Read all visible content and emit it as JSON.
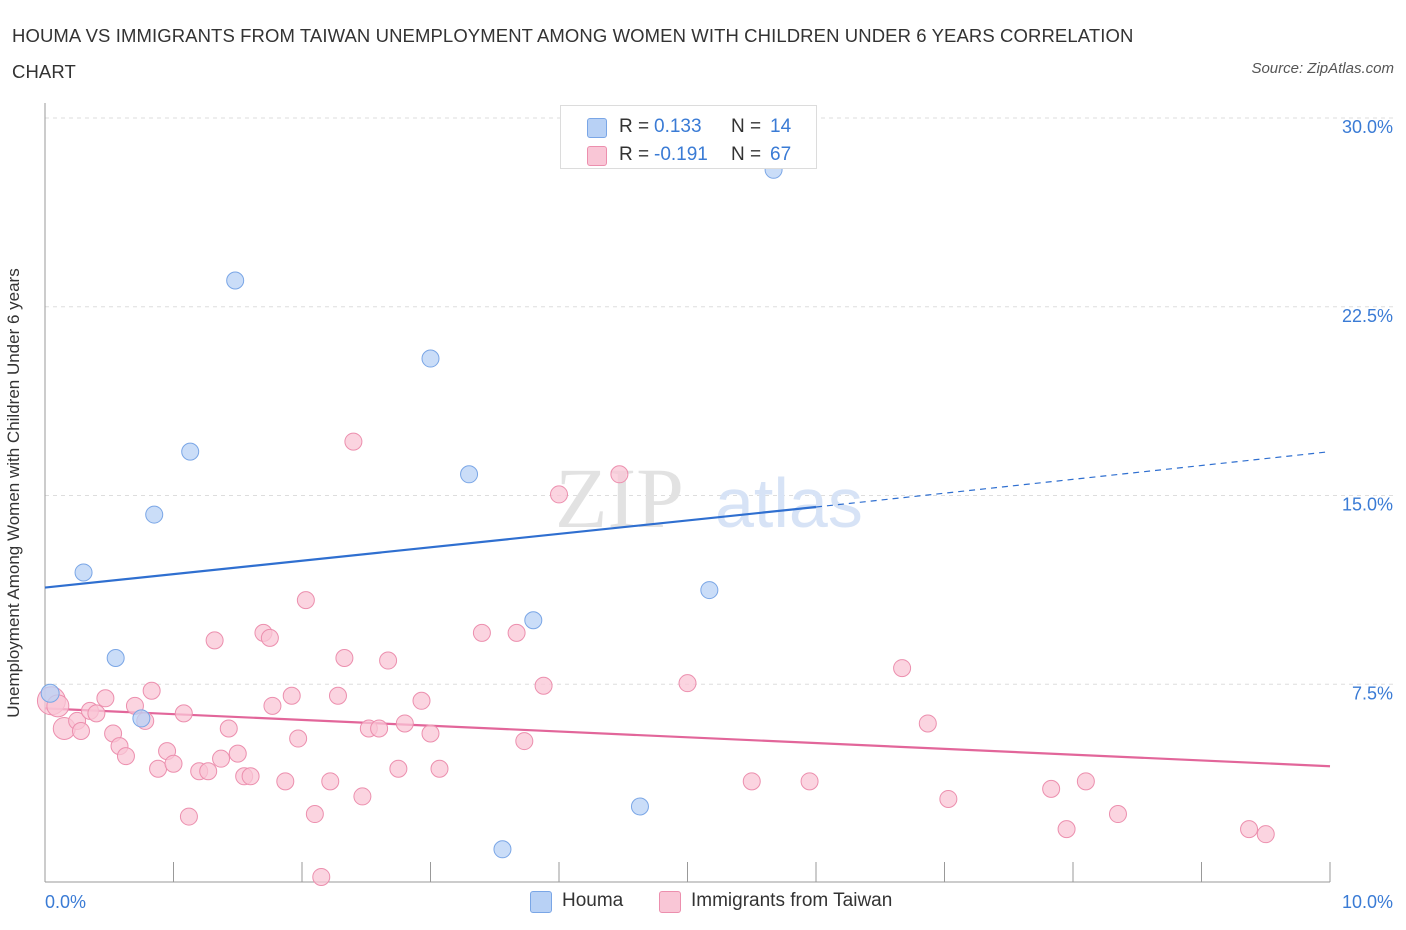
{
  "title": "HOUMA VS IMMIGRANTS FROM TAIWAN UNEMPLOYMENT AMONG WOMEN WITH CHILDREN UNDER 6 YEARS CORRELATION CHART",
  "source": "Source: ZipAtlas.com",
  "watermark": {
    "part1": "ZIP",
    "part2": "atlas"
  },
  "legend_top": {
    "rows": [
      {
        "r_label": "R =",
        "r_value": "0.133",
        "n_label": "N =",
        "n_value": "14",
        "color": "#b8d1f5",
        "border": "#7aa6e6"
      },
      {
        "r_label": "R =",
        "r_value": "-0.191",
        "n_label": "N =",
        "n_value": "67",
        "color": "#f9c6d6",
        "border": "#ec8fae"
      }
    ]
  },
  "legend_bottom": [
    {
      "label": "Houma",
      "color": "#b8d1f5",
      "border": "#7aa6e6"
    },
    {
      "label": "Immigrants from Taiwan",
      "color": "#f9c6d6",
      "border": "#ec8fae"
    }
  ],
  "colors": {
    "blue_line": "#2f6fd0",
    "pink_line": "#e2669a",
    "axis_text": "#3a7bd5",
    "grid": "#dddddd"
  },
  "chart_data": {
    "type": "scatter",
    "title": "HOUMA VS IMMIGRANTS FROM TAIWAN UNEMPLOYMENT AMONG WOMEN WITH CHILDREN UNDER 6 YEARS CORRELATION CHART",
    "xlabel": "",
    "ylabel": "Unemployment Among Women with Children Under 6 years",
    "xlim": [
      0,
      10
    ],
    "ylim": [
      0,
      30
    ],
    "x_tick_labels": [
      {
        "value": 0,
        "label": "0.0%"
      },
      {
        "value": 10,
        "label": "10.0%"
      }
    ],
    "y_tick_labels": [
      {
        "value": 7.5,
        "label": "7.5%"
      },
      {
        "value": 15,
        "label": "15.0%"
      },
      {
        "value": 22.5,
        "label": "22.5%"
      },
      {
        "value": 30,
        "label": "30.0%"
      }
    ],
    "grid": "horizontal dashed",
    "legend_placement": "bottom",
    "series": [
      {
        "name": "Houma",
        "color": "#b8d1f5",
        "r": 0.133,
        "n": 14,
        "points": [
          {
            "x": 0.04,
            "y": 7.5
          },
          {
            "x": 0.3,
            "y": 12.3
          },
          {
            "x": 0.55,
            "y": 8.9
          },
          {
            "x": 0.75,
            "y": 6.5
          },
          {
            "x": 0.85,
            "y": 14.6
          },
          {
            "x": 1.13,
            "y": 17.1
          },
          {
            "x": 1.48,
            "y": 23.9
          },
          {
            "x": 3.0,
            "y": 20.8
          },
          {
            "x": 3.3,
            "y": 16.2
          },
          {
            "x": 3.56,
            "y": 1.3
          },
          {
            "x": 3.8,
            "y": 10.4
          },
          {
            "x": 4.63,
            "y": 3.0
          },
          {
            "x": 5.17,
            "y": 11.6
          },
          {
            "x": 5.67,
            "y": 28.3
          }
        ],
        "trend": {
          "x0": 0,
          "y0": 11.7,
          "x1": 6.0,
          "y1": 14.9,
          "dashed_to_x": 10,
          "dashed_to_y": 17.1
        }
      },
      {
        "name": "Immigrants from Taiwan",
        "color": "#f9c6d6",
        "r": -0.191,
        "n": 67,
        "points": [
          {
            "x": 0.05,
            "y": 7.2
          },
          {
            "x": 0.1,
            "y": 7.0
          },
          {
            "x": 0.15,
            "y": 6.1
          },
          {
            "x": 0.25,
            "y": 6.4
          },
          {
            "x": 0.28,
            "y": 6.0
          },
          {
            "x": 0.35,
            "y": 6.8
          },
          {
            "x": 0.4,
            "y": 6.7
          },
          {
            "x": 0.47,
            "y": 7.3
          },
          {
            "x": 0.53,
            "y": 5.9
          },
          {
            "x": 0.58,
            "y": 5.4
          },
          {
            "x": 0.63,
            "y": 5.0
          },
          {
            "x": 0.7,
            "y": 7.0
          },
          {
            "x": 0.78,
            "y": 6.4
          },
          {
            "x": 0.83,
            "y": 7.6
          },
          {
            "x": 0.88,
            "y": 4.5
          },
          {
            "x": 0.95,
            "y": 5.2
          },
          {
            "x": 1.0,
            "y": 4.7
          },
          {
            "x": 1.08,
            "y": 6.7
          },
          {
            "x": 1.12,
            "y": 2.6
          },
          {
            "x": 1.2,
            "y": 4.4
          },
          {
            "x": 1.27,
            "y": 4.4
          },
          {
            "x": 1.32,
            "y": 9.6
          },
          {
            "x": 1.37,
            "y": 4.9
          },
          {
            "x": 1.43,
            "y": 6.1
          },
          {
            "x": 1.5,
            "y": 5.1
          },
          {
            "x": 1.55,
            "y": 4.2
          },
          {
            "x": 1.6,
            "y": 4.2
          },
          {
            "x": 1.7,
            "y": 9.9
          },
          {
            "x": 1.75,
            "y": 9.7
          },
          {
            "x": 1.77,
            "y": 7.0
          },
          {
            "x": 1.87,
            "y": 4.0
          },
          {
            "x": 1.92,
            "y": 7.4
          },
          {
            "x": 1.97,
            "y": 5.7
          },
          {
            "x": 2.03,
            "y": 11.2
          },
          {
            "x": 2.1,
            "y": 2.7
          },
          {
            "x": 2.15,
            "y": 0.2
          },
          {
            "x": 2.22,
            "y": 4.0
          },
          {
            "x": 2.28,
            "y": 7.4
          },
          {
            "x": 2.33,
            "y": 8.9
          },
          {
            "x": 2.4,
            "y": 17.5
          },
          {
            "x": 2.47,
            "y": 3.4
          },
          {
            "x": 2.52,
            "y": 6.1
          },
          {
            "x": 2.6,
            "y": 6.1
          },
          {
            "x": 2.67,
            "y": 8.8
          },
          {
            "x": 2.75,
            "y": 4.5
          },
          {
            "x": 2.8,
            "y": 6.3
          },
          {
            "x": 2.93,
            "y": 7.2
          },
          {
            "x": 3.0,
            "y": 5.9
          },
          {
            "x": 3.07,
            "y": 4.5
          },
          {
            "x": 3.4,
            "y": 9.9
          },
          {
            "x": 3.67,
            "y": 9.9
          },
          {
            "x": 3.73,
            "y": 5.6
          },
          {
            "x": 3.88,
            "y": 7.8
          },
          {
            "x": 4.0,
            "y": 15.4
          },
          {
            "x": 4.47,
            "y": 16.2
          },
          {
            "x": 5.0,
            "y": 7.9
          },
          {
            "x": 5.5,
            "y": 4.0
          },
          {
            "x": 5.95,
            "y": 4.0
          },
          {
            "x": 6.67,
            "y": 8.5
          },
          {
            "x": 6.87,
            "y": 6.3
          },
          {
            "x": 7.03,
            "y": 3.3
          },
          {
            "x": 7.83,
            "y": 3.7
          },
          {
            "x": 7.95,
            "y": 2.1
          },
          {
            "x": 8.1,
            "y": 4.0
          },
          {
            "x": 8.35,
            "y": 2.7
          },
          {
            "x": 9.37,
            "y": 2.1
          },
          {
            "x": 9.5,
            "y": 1.9
          }
        ],
        "trend": {
          "x0": 0,
          "y0": 6.9,
          "x1": 10,
          "y1": 4.6
        }
      }
    ]
  }
}
